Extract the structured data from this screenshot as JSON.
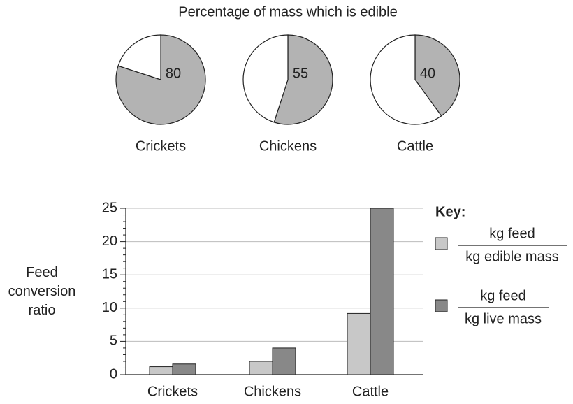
{
  "chart_data": [
    {
      "type": "pie",
      "title": "Percentage of mass which is edible",
      "label": "Crickets",
      "values": [
        80,
        20
      ],
      "value_labels": [
        "80",
        null
      ],
      "colors": [
        "#b3b3b3",
        "#ffffff"
      ]
    },
    {
      "type": "pie",
      "label": "Chickens",
      "values": [
        55,
        45
      ],
      "value_labels": [
        "55",
        null
      ],
      "colors": [
        "#b3b3b3",
        "#ffffff"
      ]
    },
    {
      "type": "pie",
      "label": "Cattle",
      "values": [
        40,
        60
      ],
      "value_labels": [
        "40",
        null
      ],
      "colors": [
        "#b3b3b3",
        "#ffffff"
      ]
    },
    {
      "type": "bar",
      "ylabel": "Feed conversion ratio",
      "legend_title": "Key:",
      "categories": [
        "Crickets",
        "Chickens",
        "Cattle"
      ],
      "series": [
        {
          "name_numerator": "kg feed",
          "name_denominator": "kg edible mass",
          "color": "#c8c8c8",
          "values": [
            1.2,
            2.0,
            9.2
          ]
        },
        {
          "name_numerator": "kg feed",
          "name_denominator": "kg live mass",
          "color": "#888888",
          "values": [
            1.6,
            4.0,
            25
          ]
        }
      ],
      "ylim": [
        0,
        25
      ],
      "yticks": [
        0,
        5,
        10,
        15,
        20,
        25
      ],
      "yminorticks": [
        1,
        2,
        3,
        4,
        6,
        7,
        8,
        9,
        11,
        12,
        13,
        14,
        16,
        17,
        18,
        19,
        21,
        22,
        23,
        24
      ],
      "grid": true
    }
  ]
}
